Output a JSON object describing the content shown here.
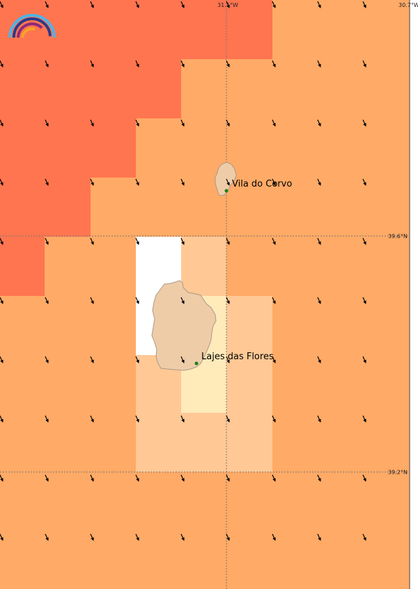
{
  "map": {
    "grid_labels": {
      "lon_center": "31.1°W",
      "lon_right": "30.7°W",
      "lat_upper": "39.6°N",
      "lat_lower": "39.2°N"
    },
    "places": [
      {
        "name": "Vila do Corvo",
        "island": "Corvo"
      },
      {
        "name": "Lajes das Flores",
        "island": "Flores"
      }
    ],
    "colors": {
      "level_high": "#ff7550",
      "level_mid": "#ffaa66",
      "level_low": "#ffc894",
      "level_lowest": "#ffeaba",
      "no_data": "#ffffff",
      "land": "#efcca8",
      "coast": "#a89a8a",
      "grid_line": "#777777",
      "arrow": "#000000",
      "town_marker": "#1a7f1a"
    },
    "wind_arrow_direction": "south-southeast",
    "logo_icon": "rainbow-logo-icon"
  }
}
